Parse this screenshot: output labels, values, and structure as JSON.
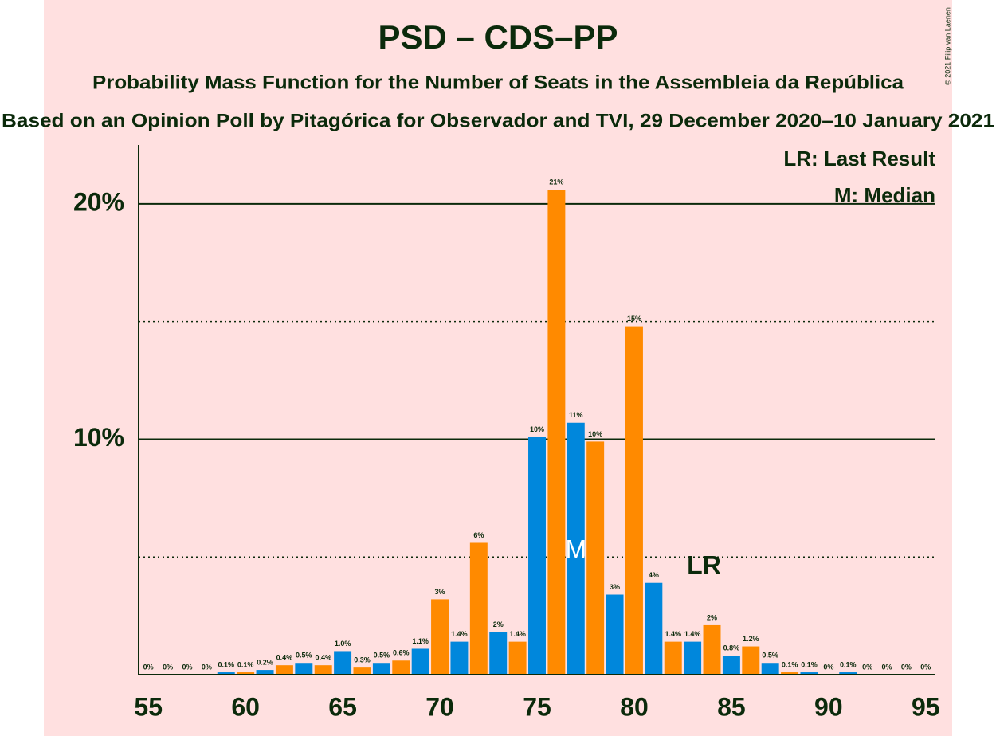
{
  "chart_data": {
    "type": "bar",
    "title": "PSD – CDS–PP",
    "subtitle": "Probability Mass Function for the Number of Seats in the Assembleia da República",
    "subtitle2": "Based on an Opinion Poll by Pitagórica for Observador and TVI, 29 December 2020–10 January 2021",
    "copyright": "© 2021 Filip van Laenen",
    "legend": [
      "LR: Last Result",
      "M: Median"
    ],
    "median": {
      "label": "M",
      "x": 77
    },
    "last_result": {
      "label": "LR",
      "x": 84
    },
    "x": [
      55,
      56,
      57,
      58,
      59,
      60,
      61,
      62,
      63,
      64,
      65,
      66,
      67,
      68,
      69,
      70,
      71,
      72,
      73,
      74,
      75,
      76,
      77,
      78,
      79,
      80,
      81,
      82,
      83,
      84,
      85,
      86,
      87,
      88,
      89,
      90,
      91,
      92,
      93,
      94,
      95
    ],
    "values": [
      0,
      0,
      0,
      0,
      0.1,
      0.1,
      0.2,
      0.4,
      0.5,
      0.4,
      1.0,
      0.3,
      0.5,
      0.6,
      1.1,
      3.2,
      1.4,
      5.6,
      1.8,
      1.4,
      10.1,
      20.6,
      10.7,
      9.9,
      3.4,
      14.8,
      3.9,
      1.4,
      1.4,
      2.1,
      0.8,
      1.2,
      0.5,
      0.1,
      0.1,
      0,
      0.1,
      0,
      0,
      0,
      0
    ],
    "value_labels": [
      "0%",
      "0%",
      "0%",
      "0%",
      "0.1%",
      "0.1%",
      "0.2%",
      "0.4%",
      "0.5%",
      "0.4%",
      "1.0%",
      "0.3%",
      "0.5%",
      "0.6%",
      "1.1%",
      "3%",
      "1.4%",
      "6%",
      "2%",
      "1.4%",
      "10%",
      "21%",
      "11%",
      "10%",
      "3%",
      "15%",
      "4%",
      "1.4%",
      "1.4%",
      "2%",
      "0.8%",
      "1.2%",
      "0.5%",
      "0.1%",
      "0.1%",
      "0%",
      "0.1%",
      "0%",
      "0%",
      "0%",
      "0%"
    ],
    "colors": [
      "#0087dc",
      "#ff8a00",
      "#0087dc",
      "#ff8a00",
      "#0087dc",
      "#ff8a00",
      "#0087dc",
      "#ff8a00",
      "#0087dc",
      "#ff8a00",
      "#0087dc",
      "#ff8a00",
      "#0087dc",
      "#ff8a00",
      "#0087dc",
      "#ff8a00",
      "#0087dc",
      "#ff8a00",
      "#0087dc",
      "#ff8a00",
      "#0087dc",
      "#ff8a00",
      "#0087dc",
      "#ff8a00",
      "#0087dc",
      "#ff8a00",
      "#0087dc",
      "#ff8a00",
      "#0087dc",
      "#ff8a00",
      "#0087dc",
      "#ff8a00",
      "#0087dc",
      "#ff8a00",
      "#0087dc",
      "#ff8a00",
      "#0087dc",
      "#ff8a00",
      "#0087dc",
      "#ff8a00",
      "#0087dc"
    ],
    "xlim": [
      54.5,
      95.5
    ],
    "xticks": [
      55,
      60,
      65,
      70,
      75,
      80,
      85,
      90,
      95
    ],
    "ylim": [
      0,
      22.5
    ],
    "yticks": [
      {
        "value": 10,
        "label": "10%"
      },
      {
        "value": 20,
        "label": "20%"
      }
    ],
    "minor_yticks": [
      5,
      15
    ],
    "grid": true
  }
}
